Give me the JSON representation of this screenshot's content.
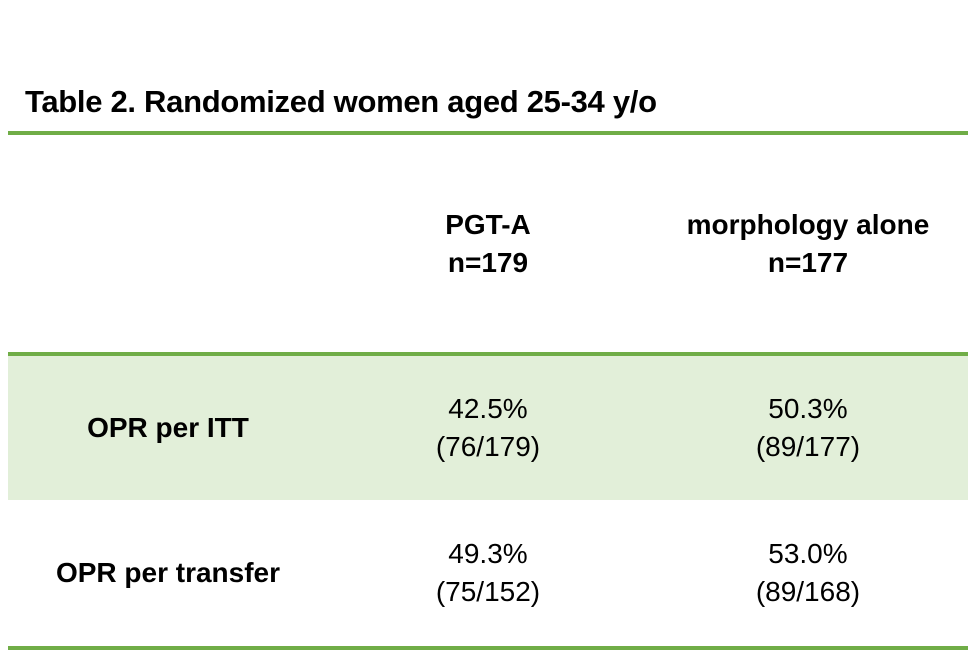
{
  "title": "Table 2. Randomized women aged 25-34 y/o",
  "colors": {
    "accent_green": "#70AD47",
    "highlight_row_fill": "#E2EFD9",
    "text": "#000000",
    "background": "#FFFFFF"
  },
  "table": {
    "header": {
      "row_label": "",
      "columns": [
        {
          "name": "PGT-A",
          "n": "n=179"
        },
        {
          "name": "morphology alone",
          "n": "n=177"
        }
      ]
    },
    "rows": [
      {
        "label": "OPR per ITT",
        "highlighted": true,
        "cells": [
          {
            "pct": "42.5%",
            "frac": "(76/179)"
          },
          {
            "pct": "50.3%",
            "frac": "(89/177)"
          }
        ]
      },
      {
        "label": "OPR per transfer",
        "highlighted": false,
        "cells": [
          {
            "pct": "49.3%",
            "frac": "(75/152)"
          },
          {
            "pct": "53.0%",
            "frac": "(89/168)"
          }
        ]
      }
    ]
  }
}
